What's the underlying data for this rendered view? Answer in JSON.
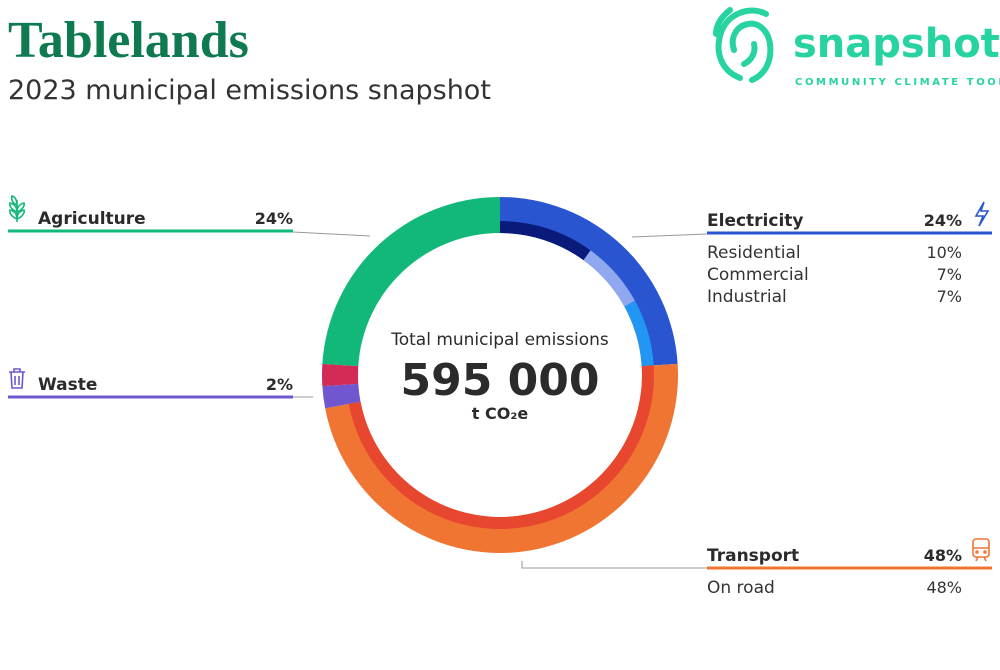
{
  "header": {
    "title": "Tablelands",
    "subtitle": "2023 municipal emissions snapshot"
  },
  "logo": {
    "name": "snapshot",
    "tagline": "COMMUNITY CLIMATE TOOL"
  },
  "chart_data": {
    "type": "donut",
    "center_label": "Total municipal emissions",
    "total": {
      "value": 595000,
      "label": "595 000"
    },
    "unit": "t CO₂e",
    "sectors": [
      {
        "name": "Electricity",
        "value": 24,
        "value_label": "24%",
        "color": "#2a55d0",
        "subcategories": [
          {
            "name": "Residential",
            "value": 10,
            "value_label": "10%",
            "color": "#0a1a7a"
          },
          {
            "name": "Commercial",
            "value": 7,
            "value_label": "7%",
            "color": "#8fa8ef"
          },
          {
            "name": "Industrial",
            "value": 7,
            "value_label": "7%",
            "color": "#2196f3"
          }
        ]
      },
      {
        "name": "Transport",
        "value": 48,
        "value_label": "48%",
        "color": "#f07533",
        "subcategories": [
          {
            "name": "On road",
            "value": 48,
            "value_label": "48%",
            "color": "#e8472f"
          }
        ]
      },
      {
        "name": "Waste",
        "value": 2,
        "value_label": "2%",
        "color": "#7057d0"
      },
      {
        "name": null,
        "value": 2,
        "color": "#d42a56"
      },
      {
        "name": "Agriculture",
        "value": 24,
        "value_label": "24%",
        "color": "#12b87a"
      }
    ]
  }
}
